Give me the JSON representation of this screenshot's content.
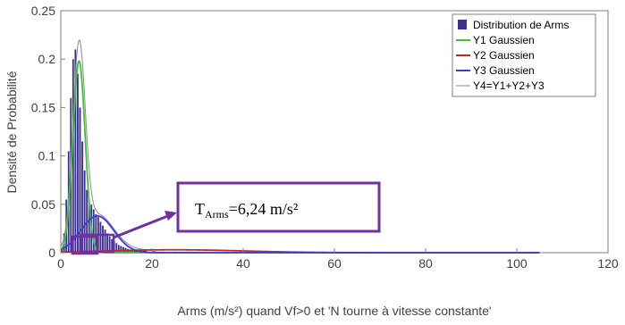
{
  "chart_data": {
    "type": "bar",
    "title": "",
    "xlabel": "Arms (m/s²) quand Vf>0 et 'N tourne à vitesse constante'",
    "ylabel": "Densité de Probabilité",
    "xlim": [
      0,
      120
    ],
    "ylim": [
      0,
      0.25
    ],
    "xticks": [
      "0",
      "20",
      "40",
      "60",
      "80",
      "100",
      "120"
    ],
    "yticks": [
      "0",
      "0.05",
      "0.1",
      "0.15",
      "0.2",
      "0.25"
    ],
    "grid": false,
    "legend_position": "top-right",
    "legend": [
      {
        "label": "Distribution de Arms",
        "color": "#3b2f8f",
        "kind": "bar"
      },
      {
        "label": "Y1 Gaussien",
        "color": "#39c433",
        "kind": "line"
      },
      {
        "label": "Y2 Gaussien",
        "color": "#c0282d",
        "kind": "line"
      },
      {
        "label": "Y3 Gaussien",
        "color": "#3b3bd6",
        "kind": "line"
      },
      {
        "label": "Y4=Y1+Y2+Y3",
        "color": "#8c8c8c",
        "kind": "line"
      }
    ],
    "histogram": {
      "bin_width": 0.5,
      "x": [
        0.25,
        0.75,
        1.25,
        1.75,
        2.25,
        2.75,
        3.25,
        3.75,
        4.25,
        4.75,
        5.25,
        5.75,
        6.25,
        6.75,
        7.25,
        7.75,
        8.25,
        8.75,
        9.25,
        9.75,
        10.25,
        10.75,
        11.25,
        11.75,
        12.25,
        12.75,
        13.25,
        13.75,
        14.25,
        14.75,
        15.25,
        15.75,
        16.5,
        18.5,
        20.5,
        22.5,
        25,
        30
      ],
      "values": [
        0.005,
        0.02,
        0.055,
        0.105,
        0.16,
        0.2,
        0.21,
        0.185,
        0.15,
        0.115,
        0.085,
        0.065,
        0.055,
        0.05,
        0.045,
        0.04,
        0.037,
        0.032,
        0.028,
        0.024,
        0.02,
        0.017,
        0.014,
        0.012,
        0.01,
        0.008,
        0.007,
        0.006,
        0.005,
        0.004,
        0.003,
        0.003,
        0.002,
        0.002,
        0.0015,
        0.001,
        0.001,
        0.0008
      ]
    },
    "series": [
      {
        "name": "Y1 Gaussien",
        "color": "#39c433",
        "type": "gaussian",
        "peak": 0.198,
        "mean": 4,
        "sigma": 1.35
      },
      {
        "name": "Y2 Gaussien",
        "color": "#c0282d",
        "type": "gaussian",
        "peak": 0.003,
        "mean": 25,
        "sigma": 15
      },
      {
        "name": "Y3 Gaussien",
        "color": "#3b3bd6",
        "type": "gaussian",
        "peak": 0.038,
        "mean": 8,
        "sigma": 3.6
      },
      {
        "name": "Y4=Y1+Y2+Y3",
        "color": "#8c8c8c",
        "type": "sum"
      }
    ],
    "annotation": {
      "text_main": "T",
      "text_sub": "Arms",
      "text_rest": "=6,24 m/s²",
      "border_color": "#7030a0",
      "arrow_color": "#7030a0"
    }
  }
}
